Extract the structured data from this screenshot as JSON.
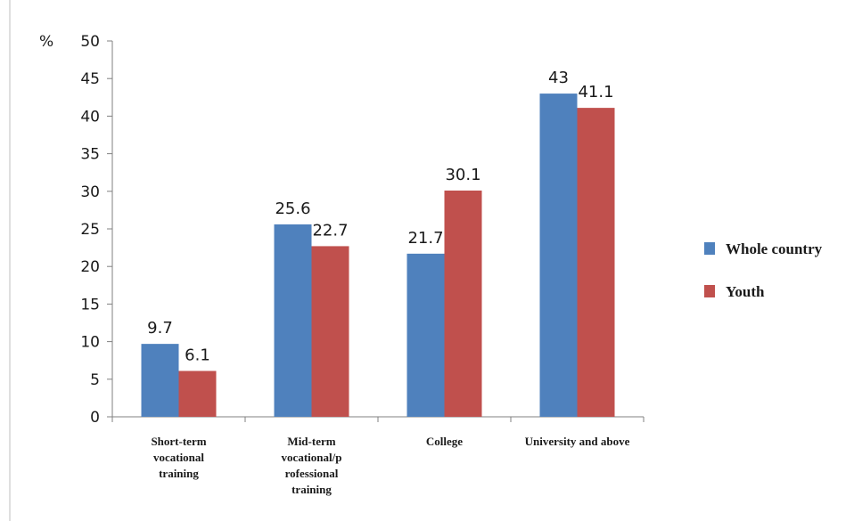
{
  "chart_data": {
    "type": "bar",
    "title": "",
    "xlabel": "",
    "ylabel": "%",
    "ylim": [
      0,
      50
    ],
    "yticks": [
      0,
      5,
      10,
      15,
      20,
      25,
      30,
      35,
      40,
      45,
      50
    ],
    "grid": false,
    "legend_position": "right",
    "categories": [
      [
        "Short-term",
        "vocational",
        "training"
      ],
      [
        "Mid-term",
        "vocational/p",
        "rofessional",
        "training"
      ],
      [
        "College"
      ],
      [
        "University and above"
      ]
    ],
    "series": [
      {
        "name": "Whole country",
        "color": "#4f81bd",
        "values": [
          9.7,
          25.6,
          21.7,
          43
        ],
        "labels": [
          "9.7",
          "25.6",
          "21.7",
          "43"
        ]
      },
      {
        "name": "Youth",
        "color": "#c0504d",
        "values": [
          6.1,
          22.7,
          30.1,
          41.1
        ],
        "labels": [
          "6.1",
          "22.7",
          "30.1",
          "41.1"
        ]
      }
    ]
  }
}
